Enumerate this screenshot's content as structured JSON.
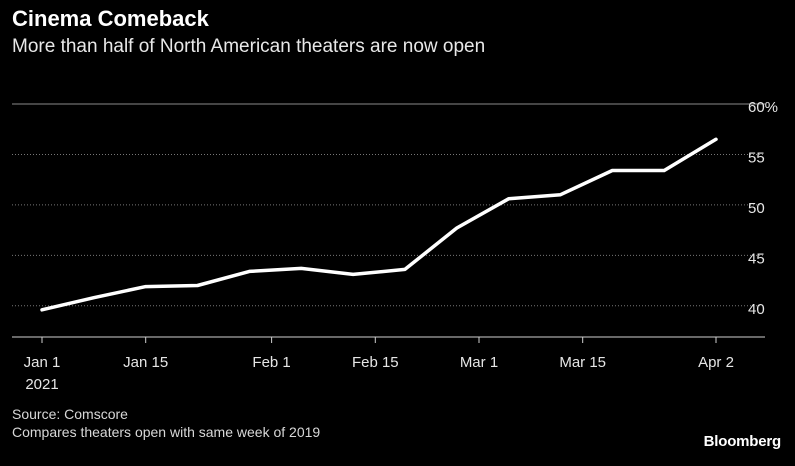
{
  "chart_data": {
    "type": "line",
    "title": "Cinema Comeback",
    "subtitle": "More than half of North American theaters are now open",
    "x": [
      "2021-01-01",
      "2021-01-08",
      "2021-01-15",
      "2021-01-22",
      "2021-01-29",
      "2021-02-05",
      "2021-02-12",
      "2021-02-19",
      "2021-02-26",
      "2021-03-05",
      "2021-03-12",
      "2021-03-19",
      "2021-03-26",
      "2021-04-02"
    ],
    "series": [
      {
        "values": [
          40.2,
          41.4,
          42.5,
          42.6,
          44.0,
          44.3,
          43.7,
          44.2,
          48.3,
          51.2,
          51.6,
          54.0,
          54.0,
          57.1
        ]
      }
    ],
    "xticks": [
      {
        "date": "2021-01-01",
        "label": "Jan 1",
        "sublabel": "2021"
      },
      {
        "date": "2021-01-15",
        "label": "Jan 15"
      },
      {
        "date": "2021-02-01",
        "label": "Feb 1"
      },
      {
        "date": "2021-02-15",
        "label": "Feb 15"
      },
      {
        "date": "2021-03-01",
        "label": "Mar 1"
      },
      {
        "date": "2021-03-15",
        "label": "Mar 15"
      },
      {
        "date": "2021-04-02",
        "label": "Apr 2"
      }
    ],
    "yticks": [
      {
        "value": 60,
        "label": "60%"
      },
      {
        "value": 55,
        "label": "55"
      },
      {
        "value": 50,
        "label": "50"
      },
      {
        "value": 45,
        "label": "45"
      },
      {
        "value": 40,
        "label": "40"
      }
    ],
    "ylim": [
      37.5,
      60
    ],
    "grid": true,
    "line_color": "#ffffff"
  },
  "footer": {
    "source": "Source: Comscore",
    "note": "Compares theaters open with same week of 2019",
    "brand": "Bloomberg"
  }
}
